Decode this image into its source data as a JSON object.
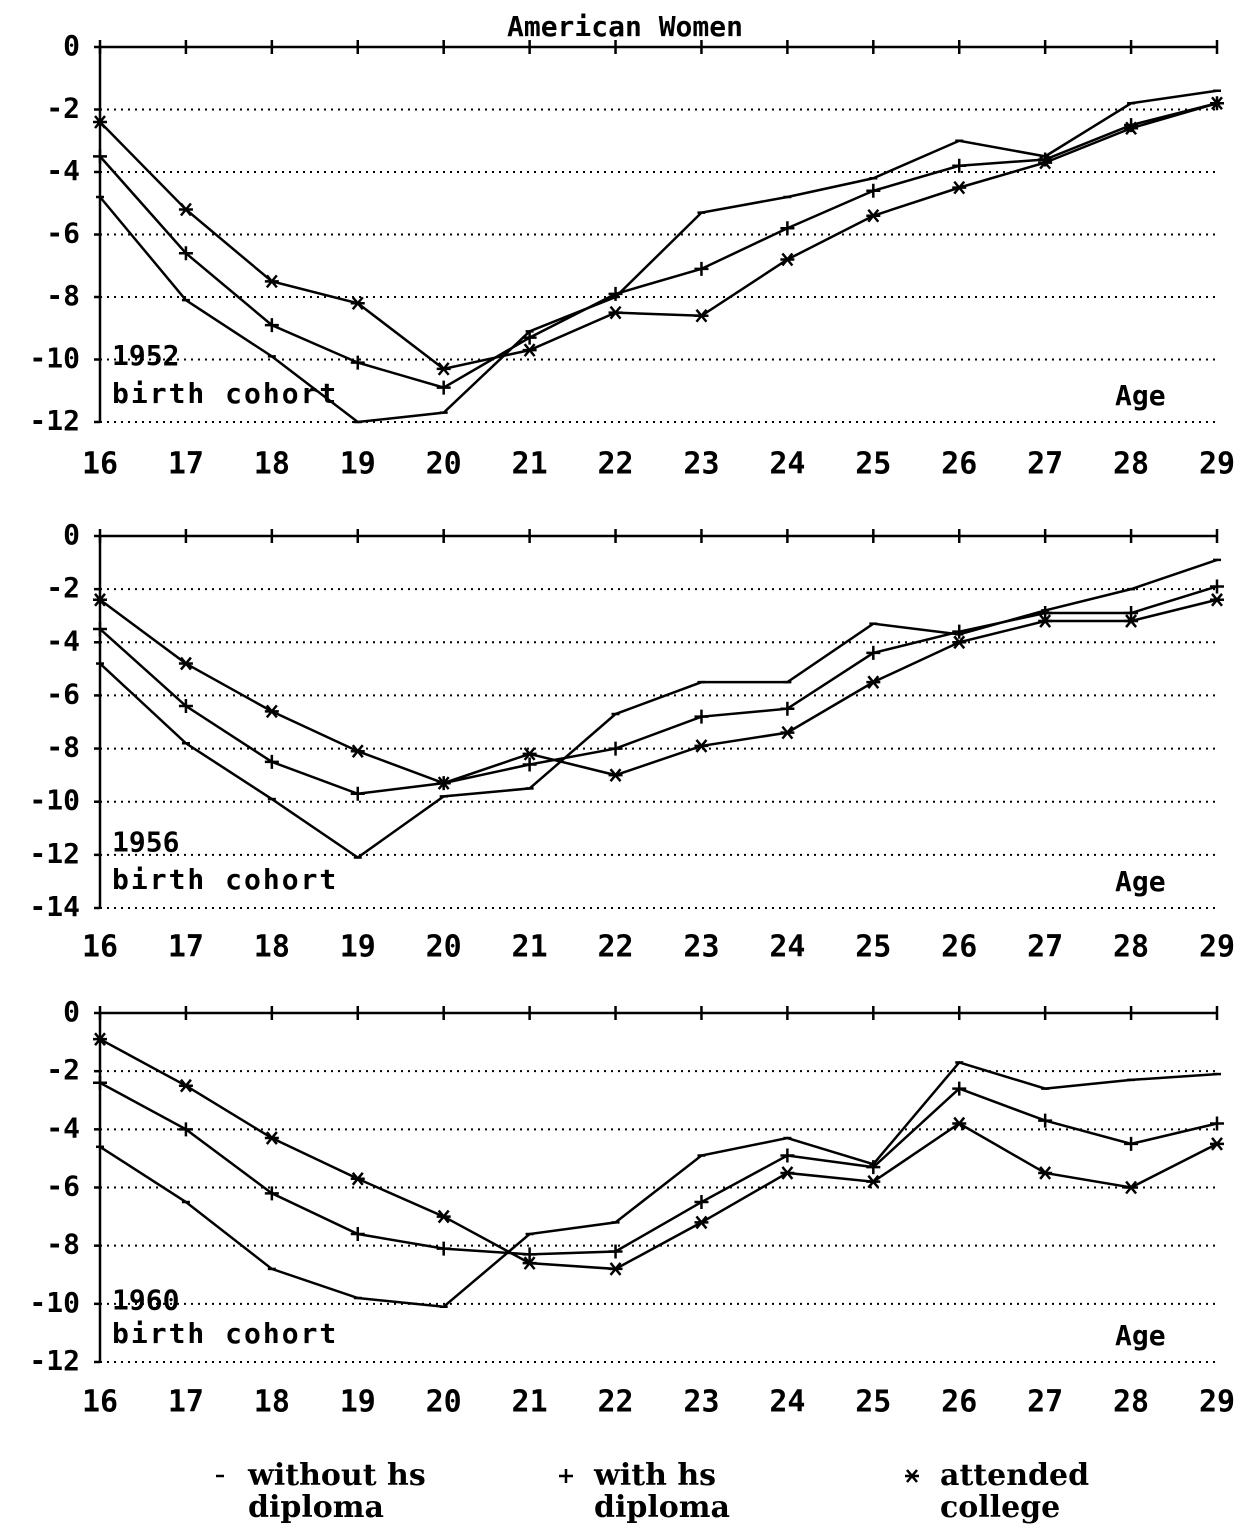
{
  "chart_data": [
    {
      "type": "line",
      "title": "American Women",
      "annotations": [
        "1952",
        "birth cohort"
      ],
      "xlabel": "Age",
      "x": [
        16,
        17,
        18,
        19,
        20,
        21,
        22,
        23,
        24,
        25,
        26,
        27,
        28,
        29
      ],
      "xlim": [
        16,
        29
      ],
      "xticks": [
        16,
        17,
        18,
        19,
        20,
        21,
        22,
        23,
        24,
        25,
        26,
        27,
        28,
        29
      ],
      "ylim": [
        -12,
        0
      ],
      "yticks": [
        0,
        -2,
        -4,
        -6,
        -8,
        -10,
        -12
      ],
      "grid": true,
      "series": [
        {
          "name": "without hs diploma",
          "color": "#000000",
          "marker": "dash",
          "values": [
            -4.8,
            -8.1,
            -9.9,
            -12,
            -11.7,
            -9.1,
            -8.0,
            -5.3,
            -4.8,
            -4.2,
            -3.0,
            -3.5,
            -1.8,
            -1.4
          ]
        },
        {
          "name": "with hs diploma",
          "color": "#000000",
          "marker": "plus",
          "values": [
            -3.5,
            -6.6,
            -8.9,
            -10.1,
            -10.9,
            -9.3,
            -7.9,
            -7.1,
            -5.8,
            -4.6,
            -3.8,
            -3.6,
            -2.5,
            -1.8
          ]
        },
        {
          "name": "attended college",
          "color": "#000000",
          "marker": "star",
          "values": [
            -2.4,
            -5.2,
            -7.5,
            -8.2,
            -10.3,
            -9.7,
            -8.5,
            -8.6,
            -6.8,
            -5.4,
            -4.5,
            -3.7,
            -2.6,
            -1.8
          ]
        }
      ]
    },
    {
      "type": "line",
      "annotations": [
        "1956",
        "birth cohort"
      ],
      "xlabel": "Age",
      "x": [
        16,
        17,
        18,
        19,
        20,
        21,
        22,
        23,
        24,
        25,
        26,
        27,
        28,
        29
      ],
      "xlim": [
        16,
        29
      ],
      "xticks": [
        16,
        17,
        18,
        19,
        20,
        21,
        22,
        23,
        24,
        25,
        26,
        27,
        28,
        29
      ],
      "ylim": [
        -14,
        0
      ],
      "yticks": [
        0,
        -2,
        -4,
        -6,
        -8,
        -10,
        -12,
        -14
      ],
      "grid": true,
      "series": [
        {
          "color": "#000000",
          "marker": "dash",
          "values": [
            -4.8,
            -7.8,
            -9.9,
            -12.1,
            -9.8,
            -9.5,
            -6.7,
            -5.5,
            -5.5,
            -3.3,
            -3.7,
            -2.8,
            -2.0,
            -0.9
          ]
        },
        {
          "color": "#000000",
          "marker": "plus",
          "values": [
            -3.5,
            -6.4,
            -8.5,
            -9.7,
            -9.3,
            -8.6,
            -8.0,
            -6.8,
            -6.5,
            -4.4,
            -3.6,
            -2.9,
            -2.9,
            -1.9
          ]
        },
        {
          "color": "#000000",
          "marker": "star",
          "values": [
            -2.4,
            -4.8,
            -6.6,
            -8.1,
            -9.3,
            -8.2,
            -9.0,
            -7.9,
            -7.4,
            -5.5,
            -4.0,
            -3.2,
            -3.2,
            -2.4
          ]
        }
      ]
    },
    {
      "type": "line",
      "annotations": [
        "1960",
        "birth cohort"
      ],
      "xlabel": "Age",
      "x": [
        16,
        17,
        18,
        19,
        20,
        21,
        22,
        23,
        24,
        25,
        26,
        27,
        28,
        29
      ],
      "xlim": [
        16,
        29
      ],
      "xticks": [
        16,
        17,
        18,
        19,
        20,
        21,
        22,
        23,
        24,
        25,
        26,
        27,
        28,
        29
      ],
      "ylim": [
        -12,
        0
      ],
      "yticks": [
        0,
        -2,
        -4,
        -6,
        -8,
        -10,
        -12
      ],
      "grid": true,
      "series": [
        {
          "color": "#000000",
          "marker": "dash",
          "values": [
            -4.6,
            -6.5,
            -8.8,
            -9.8,
            -10.1,
            -7.6,
            -7.2,
            -4.9,
            -4.3,
            -5.2,
            -1.7,
            -2.6,
            -2.3,
            -2.1
          ]
        },
        {
          "color": "#000000",
          "marker": "plus",
          "values": [
            -2.4,
            -4.0,
            -6.2,
            -7.6,
            -8.1,
            -8.3,
            -8.2,
            -6.5,
            -4.9,
            -5.3,
            -2.6,
            -3.7,
            -4.5,
            -3.8
          ]
        },
        {
          "color": "#000000",
          "marker": "star",
          "values": [
            -0.9,
            -2.5,
            -4.3,
            -5.7,
            -7.0,
            -8.6,
            -8.8,
            -7.2,
            -5.5,
            -5.8,
            -3.8,
            -5.5,
            -6.0,
            -4.5
          ]
        }
      ]
    }
  ]
}
